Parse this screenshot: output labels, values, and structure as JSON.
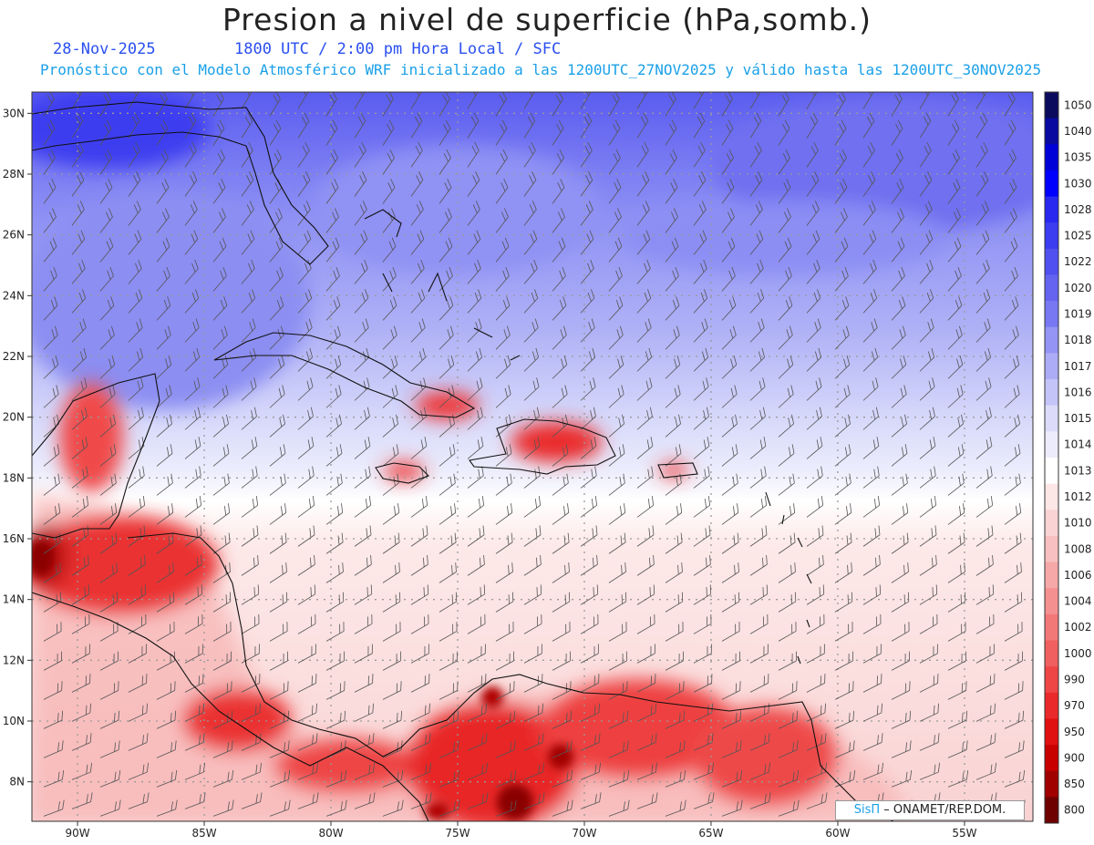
{
  "header": {
    "title": "Presion a nivel de superficie (hPa,somb.)",
    "date": "28-Nov-2025",
    "time_info": "1800 UTC / 2:00 pm Hora Local / SFC",
    "forecast_info": "Pronóstico con el Modelo Atmosférico WRF inicializado a las 1200UTC_27NOV2025 y válido hasta las  1200UTC_30NOV2025"
  },
  "map": {
    "lat_labels": [
      "30N",
      "28N",
      "26N",
      "24N",
      "22N",
      "20N",
      "18N",
      "16N",
      "14N",
      "12N",
      "10N",
      "8N"
    ],
    "lat_values": [
      30,
      28,
      26,
      24,
      22,
      20,
      18,
      16,
      14,
      12,
      10,
      8
    ],
    "lon_labels": [
      "90W",
      "85W",
      "80W",
      "75W",
      "70W",
      "65W",
      "60W",
      "55W"
    ],
    "lon_values": [
      -90,
      -85,
      -80,
      -75,
      -70,
      -65,
      -60,
      -55
    ],
    "lat_range": [
      6.7,
      30.7
    ],
    "lon_range": [
      -91.8,
      -52.3
    ]
  },
  "colorbar": {
    "levels": [
      "1050",
      "1040",
      "1035",
      "1030",
      "1028",
      "1025",
      "1022",
      "1020",
      "1019",
      "1018",
      "1017",
      "1016",
      "1015",
      "1014",
      "1013",
      "1012",
      "1010",
      "1008",
      "1006",
      "1004",
      "1002",
      "1000",
      "990",
      "970",
      "950",
      "900",
      "850",
      "800"
    ],
    "colors": [
      "#0b0b5e",
      "#0a0aa0",
      "#0000d8",
      "#0000ff",
      "#2828f0",
      "#3c3cf0",
      "#5050f0",
      "#6464f0",
      "#7878f2",
      "#9494f4",
      "#acacf6",
      "#c4c4f8",
      "#dcdcfa",
      "#ececfc",
      "#ffffff",
      "#fce6e6",
      "#fad4d4",
      "#f8c0c0",
      "#f6a8a8",
      "#f49090",
      "#f27878",
      "#f06060",
      "#ee4646",
      "#ea2a2a",
      "#e01010",
      "#c80000",
      "#a00000",
      "#6e0000"
    ]
  },
  "credit": {
    "brand": "SisΠ",
    "org": "– ONAMET/REP.DOM."
  }
}
